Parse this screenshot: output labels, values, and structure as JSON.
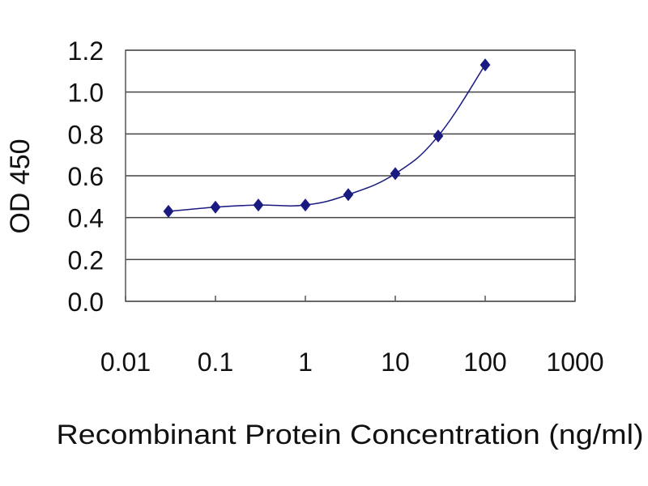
{
  "chart_data": {
    "type": "line",
    "title": "",
    "xlabel": "Recombinant Protein Concentration (ng/ml)",
    "ylabel": "OD 450",
    "x_scale": "log",
    "xlim": [
      0.01,
      1000
    ],
    "ylim": [
      0.0,
      1.2
    ],
    "x_ticks": [
      "0.01",
      "0.1",
      "1",
      "10",
      "100",
      "1000"
    ],
    "y_ticks": [
      "0.0",
      "0.2",
      "0.4",
      "0.6",
      "0.8",
      "1.0",
      "1.2"
    ],
    "grid": "horizontal",
    "legend": "none",
    "series": [
      {
        "x": [
          0.03,
          0.1,
          0.3,
          1,
          3,
          10,
          30,
          100
        ],
        "y": [
          0.43,
          0.45,
          0.46,
          0.46,
          0.51,
          0.61,
          0.79,
          1.13
        ],
        "color": "#1a1a80",
        "marker": "diamond"
      }
    ]
  }
}
